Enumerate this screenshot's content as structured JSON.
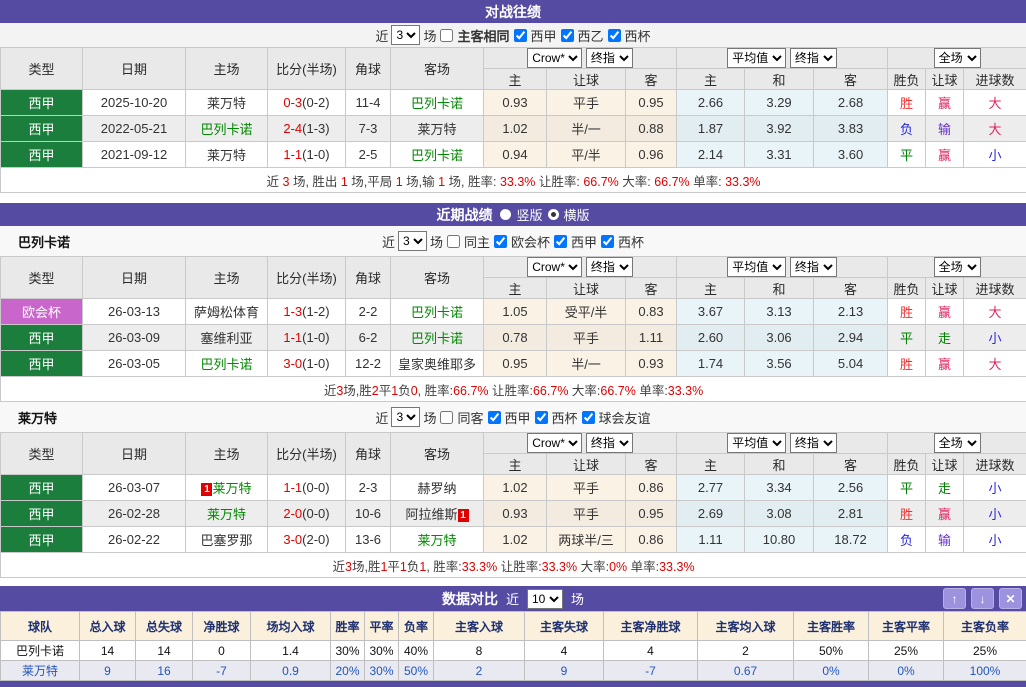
{
  "colors": {
    "accent_purple": "#564BA2",
    "league_green": "#1B7E3C",
    "league_uecl_purple": "#C966CC",
    "team_green": "#008800",
    "score_red": "#E00000",
    "win_red": "#F23030",
    "crimson": "#E0245E",
    "loss_blue": "#2525E8",
    "lose_violet": "#6633CC",
    "draw_green": "#008000",
    "button_purple": "#9C92DD",
    "compare_header_bg": "#FAF0DC",
    "compare_header_text": "#1F3070"
  },
  "h2h": {
    "title": "对战往绩",
    "filter": {
      "near": "近",
      "count": "3",
      "games": "场",
      "uncheck": "主客相同",
      "checks": [
        "西甲",
        "西乙",
        "西杯"
      ]
    },
    "head": {
      "cols": [
        "类型",
        "日期",
        "主场",
        "比分(半场)",
        "角球",
        "客场"
      ],
      "sub": [
        "主",
        "让球",
        "客",
        "主",
        "和",
        "客",
        "胜负",
        "让球",
        "进球数"
      ],
      "selects": {
        "a": "Crow*",
        "b": "终指",
        "c": "平均值",
        "d": "终指",
        "e": "全场"
      }
    },
    "rows": [
      {
        "league": "西甲",
        "lg": "lg1",
        "date": "2025-10-20",
        "home": "莱万特",
        "home_cls": "",
        "score": "0-3",
        "half": "(0-2)",
        "corner": "11-4",
        "away": "巴列卡诺",
        "away_cls": "tg",
        "o1": "0.93",
        "hc": "平手",
        "o2": "0.95",
        "a1": "2.66",
        "a2": "3.29",
        "a3": "2.68",
        "r1": "胜",
        "r1c": "cr",
        "r2": "赢",
        "r2c": "cc",
        "r3": "大",
        "r3c": "cc"
      },
      {
        "league": "西甲",
        "lg": "lg1",
        "date": "2022-05-21",
        "home": "巴列卡诺",
        "home_cls": "tg",
        "score": "2-4",
        "half": "(1-3)",
        "corner": "7-3",
        "away": "莱万特",
        "away_cls": "",
        "o1": "1.02",
        "hc": "半/一",
        "o2": "0.88",
        "a1": "1.87",
        "a2": "3.92",
        "a3": "3.83",
        "r1": "负",
        "r1c": "cb",
        "r2": "输",
        "r2c": "cv",
        "r3": "大",
        "r3c": "cc"
      },
      {
        "league": "西甲",
        "lg": "lg1",
        "date": "2021-09-12",
        "home": "莱万特",
        "home_cls": "",
        "score": "1-1",
        "half": "(1-0)",
        "corner": "2-5",
        "away": "巴列卡诺",
        "away_cls": "tg",
        "o1": "0.94",
        "hc": "平/半",
        "o2": "0.96",
        "a1": "2.14",
        "a2": "3.31",
        "a3": "3.60",
        "r1": "平",
        "r1c": "cg",
        "r2": "赢",
        "r2c": "cc",
        "r3": "小",
        "r3c": "cb"
      }
    ],
    "summary": "近 3 场, 胜出 1 场,平局 1 场,输 1 场, 胜率: 33.3% 让胜率: 66.7% 大率: 66.7% 单率: 33.3%"
  },
  "recent": {
    "title": "近期战绩",
    "radios": [
      {
        "label": "竖版",
        "checked": false
      },
      {
        "label": "横版",
        "checked": true
      }
    ],
    "teams": [
      {
        "name": "巴列卡诺",
        "filter": {
          "near": "近",
          "count": "3",
          "games": "场",
          "uncheck": "同主",
          "checks": [
            "欧会杯",
            "西甲",
            "西杯"
          ]
        },
        "head": {
          "cols": [
            "类型",
            "日期",
            "主场",
            "比分(半场)",
            "角球",
            "客场"
          ],
          "sub": [
            "主",
            "让球",
            "客",
            "主",
            "和",
            "客",
            "胜负",
            "让球",
            "进球数"
          ],
          "selects": {
            "a": "Crow*",
            "b": "终指",
            "c": "平均值",
            "d": "终指",
            "e": "全场"
          }
        },
        "rows": [
          {
            "league": "欧会杯",
            "lg": "lg2",
            "date": "26-03-13",
            "home": "萨姆松体育",
            "home_cls": "",
            "score": "1-3",
            "half": "(1-2)",
            "corner": "2-2",
            "away": "巴列卡诺",
            "away_cls": "tg",
            "o1": "1.05",
            "hc": "受平/半",
            "o2": "0.83",
            "a1": "3.67",
            "a2": "3.13",
            "a3": "2.13",
            "r1": "胜",
            "r1c": "cr",
            "r2": "赢",
            "r2c": "cc",
            "r3": "大",
            "r3c": "cc"
          },
          {
            "league": "西甲",
            "lg": "lg1",
            "date": "26-03-09",
            "home": "塞维利亚",
            "home_cls": "",
            "score": "1-1",
            "half": "(1-0)",
            "corner": "6-2",
            "away": "巴列卡诺",
            "away_cls": "tg",
            "o1": "0.78",
            "hc": "平手",
            "o2": "1.11",
            "a1": "2.60",
            "a2": "3.06",
            "a3": "2.94",
            "r1": "平",
            "r1c": "cg",
            "r2": "走",
            "r2c": "cg",
            "r3": "小",
            "r3c": "cb"
          },
          {
            "league": "西甲",
            "lg": "lg1",
            "date": "26-03-05",
            "home": "巴列卡诺",
            "home_cls": "tg",
            "score": "3-0",
            "half": "(1-0)",
            "corner": "12-2",
            "away": "皇家奥维耶多",
            "away_cls": "",
            "o1": "0.95",
            "hc": "半/一",
            "o2": "0.93",
            "a1": "1.74",
            "a2": "3.56",
            "a3": "5.04",
            "r1": "胜",
            "r1c": "cr",
            "r2": "赢",
            "r2c": "cc",
            "r3": "大",
            "r3c": "cc"
          }
        ],
        "summary": "近3场,胜2平1负0, 胜率:66.7% 让胜率:66.7% 大率:66.7% 单率:33.3%"
      },
      {
        "name": "莱万特",
        "filter": {
          "near": "近",
          "count": "3",
          "games": "场",
          "uncheck": "同客",
          "checks": [
            "西甲",
            "西杯",
            "球会友谊"
          ]
        },
        "head": {
          "cols": [
            "类型",
            "日期",
            "主场",
            "比分(半场)",
            "角球",
            "客场"
          ],
          "sub": [
            "主",
            "让球",
            "客",
            "主",
            "和",
            "客",
            "胜负",
            "让球",
            "进球数"
          ],
          "selects": {
            "a": "Crow*",
            "b": "终指",
            "c": "平均值",
            "d": "终指",
            "e": "全场"
          }
        },
        "rows": [
          {
            "league": "西甲",
            "lg": "lg1",
            "date": "26-03-07",
            "home": "莱万特",
            "home_cls": "tg",
            "home_badge": "1",
            "score": "1-1",
            "half": "(0-0)",
            "corner": "2-3",
            "away": "赫罗纳",
            "away_cls": "",
            "o1": "1.02",
            "hc": "平手",
            "o2": "0.86",
            "a1": "2.77",
            "a2": "3.34",
            "a3": "2.56",
            "r1": "平",
            "r1c": "cg",
            "r2": "走",
            "r2c": "cg",
            "r3": "小",
            "r3c": "cb"
          },
          {
            "league": "西甲",
            "lg": "lg1",
            "date": "26-02-28",
            "home": "莱万特",
            "home_cls": "tg",
            "score": "2-0",
            "half": "(0-0)",
            "corner": "10-6",
            "away": "阿拉维斯",
            "away_cls": "",
            "away_badge": "1",
            "o1": "0.93",
            "hc": "平手",
            "o2": "0.95",
            "a1": "2.69",
            "a2": "3.08",
            "a3": "2.81",
            "r1": "胜",
            "r1c": "cr",
            "r2": "赢",
            "r2c": "cc",
            "r3": "小",
            "r3c": "cb"
          },
          {
            "league": "西甲",
            "lg": "lg1",
            "date": "26-02-22",
            "home": "巴塞罗那",
            "home_cls": "",
            "score": "3-0",
            "half": "(2-0)",
            "corner": "13-6",
            "away": "莱万特",
            "away_cls": "tg",
            "o1": "1.02",
            "hc": "两球半/三",
            "o2": "0.86",
            "a1": "1.11",
            "a2": "10.80",
            "a3": "18.72",
            "r1": "负",
            "r1c": "cb",
            "r2": "输",
            "r2c": "cv",
            "r3": "小",
            "r3c": "cb"
          }
        ],
        "summary": "近3场,胜1平1负1, 胜率:33.3% 让胜率:33.3% 大率:0% 单率:33.3%"
      }
    ]
  },
  "comparison": {
    "title": "数据对比",
    "near": "近",
    "count": "10",
    "games": "场",
    "buttons": {
      "up": "↑",
      "down": "↓",
      "close": "✕"
    },
    "headers": [
      "球队",
      "总入球",
      "总失球",
      "净胜球",
      "场均入球",
      "胜率",
      "平率",
      "负率",
      "主客入球",
      "主客失球",
      "主客净胜球",
      "主客均入球",
      "主客胜率",
      "主客平率",
      "主客负率"
    ],
    "rows": [
      {
        "team": "巴列卡诺",
        "values": [
          "14",
          "14",
          "0",
          "1.4",
          "30%",
          "30%",
          "40%",
          "8",
          "4",
          "4",
          "2",
          "50%",
          "25%",
          "25%"
        ]
      },
      {
        "team": "莱万特",
        "values": [
          "9",
          "16",
          "-7",
          "0.9",
          "20%",
          "30%",
          "50%",
          "2",
          "9",
          "-7",
          "0.67",
          "0%",
          "0%",
          "100%"
        ]
      }
    ]
  }
}
